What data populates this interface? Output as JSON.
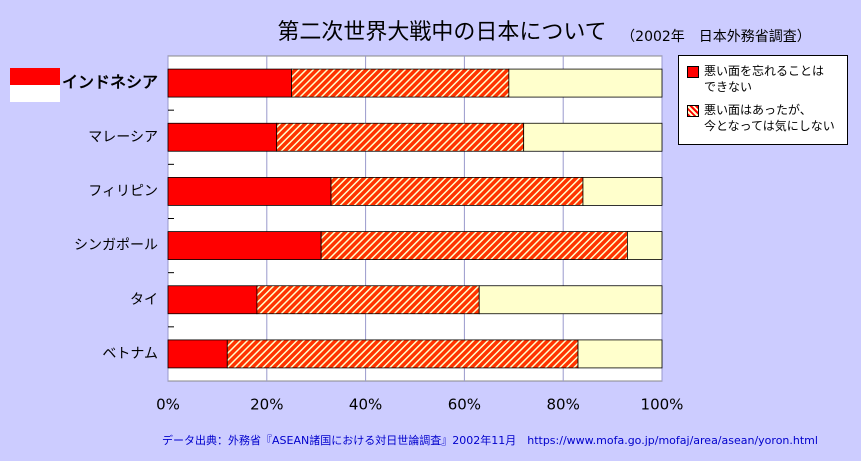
{
  "chart_data": {
    "type": "stacked-bar-horizontal",
    "title": "第二次世界大戦中の日本について",
    "subtitle": "（2002年　日本外務省調査）",
    "source": "データ出典：外務省『ASEAN諸国における対日世論調査』2002年11月　https://www.mofa.go.jp/mofaj/area/asean/yoron.html",
    "categories": [
      "インドネシア",
      "マレーシア",
      "フィリピン",
      "シンガポール",
      "タイ",
      "ベトナム"
    ],
    "series": [
      {
        "name": "悪い面を忘れることは\nできない",
        "color": "#ff0000",
        "values": [
          25,
          22,
          33,
          31,
          18,
          12
        ]
      },
      {
        "name": "悪い面はあったが、\n今となっては気にしない",
        "color": "#ff0000",
        "pattern": "hatch",
        "values": [
          44,
          50,
          51,
          62,
          45,
          71
        ]
      },
      {
        "color": "#ffffcc",
        "values": [
          31,
          28,
          16,
          7,
          37,
          17
        ]
      }
    ],
    "xlim": [
      0,
      100
    ],
    "xticks": [
      {
        "value": 0,
        "label": "0%"
      },
      {
        "value": 20,
        "label": "20%"
      },
      {
        "value": 40,
        "label": "40%"
      },
      {
        "value": 60,
        "label": "60%"
      },
      {
        "value": 80,
        "label": "80%"
      },
      {
        "value": 100,
        "label": "100%"
      }
    ],
    "grid": true,
    "legend": "right"
  }
}
